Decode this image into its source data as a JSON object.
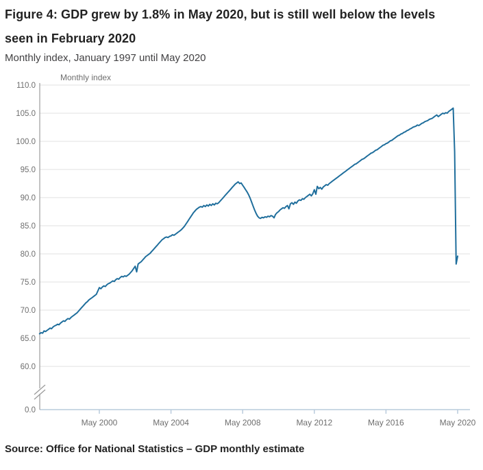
{
  "header": {
    "title": "Figure 4: GDP grew by 1.8% in May 2020, but is still well below the levels seen in February 2020",
    "subtitle": "Monthly index, January 1997 until May 2020"
  },
  "footer": {
    "source": "Source: Office for National Statistics – GDP monthly estimate"
  },
  "chart_data": {
    "type": "line",
    "title": "Figure 4: GDP grew by 1.8% in May 2020, but is still well below the levels seen in February 2020",
    "subtitle": "Monthly index, January 1997 until May 2020",
    "axis_unit_label": "Monthly index",
    "x_start": "1997-01",
    "x_end": "2020-05",
    "x_frequency": "monthly",
    "x_tick_labels": [
      "May 2000",
      "May 2004",
      "May 2008",
      "May 2012",
      "May 2016",
      "May 2020"
    ],
    "x_tick_month_index": [
      40,
      88,
      136,
      184,
      232,
      280
    ],
    "y_ticks": [
      110,
      105,
      100,
      95,
      90,
      85,
      80,
      75,
      70,
      65,
      60
    ],
    "y_tick_labels": [
      "110.0",
      "105.0",
      "100.0",
      "95.0",
      "90.0",
      "85.0",
      "80.0",
      "75.0",
      "70.0",
      "65.0",
      "60.0"
    ],
    "y_axis_zero_label": "0.0",
    "y_axis_break": true,
    "ylim_top_segment": [
      60,
      110
    ],
    "grid": "horizontal-only",
    "legend": "none",
    "colors": {
      "line": "#1f6e9c",
      "grid": "#e2e2e2",
      "y_axis": "#9b9b9b",
      "x_axis": "#b9cbdc",
      "tick_text": "#6e6e6e",
      "title_text": "#222222",
      "subtitle_text": "#414042"
    },
    "series": [
      {
        "name": "GDP monthly index",
        "values": [
          65.8,
          66.0,
          65.9,
          66.3,
          66.2,
          66.4,
          66.6,
          66.8,
          66.7,
          67.0,
          67.2,
          67.3,
          67.5,
          67.4,
          67.7,
          67.9,
          68.1,
          68.0,
          68.3,
          68.5,
          68.4,
          68.7,
          68.9,
          69.1,
          69.3,
          69.5,
          69.8,
          70.1,
          70.4,
          70.7,
          71.0,
          71.3,
          71.5,
          71.8,
          72.0,
          72.2,
          72.4,
          72.6,
          72.8,
          73.4,
          74.0,
          73.8,
          74.1,
          74.3,
          74.2,
          74.5,
          74.7,
          74.8,
          75.0,
          75.2,
          75.1,
          75.4,
          75.6,
          75.5,
          75.8,
          76.0,
          75.9,
          76.1,
          76.0,
          76.2,
          76.4,
          76.7,
          77.0,
          77.4,
          77.8,
          76.8,
          78.2,
          78.4,
          78.6,
          78.9,
          79.2,
          79.5,
          79.7,
          79.9,
          80.1,
          80.4,
          80.7,
          81.0,
          81.3,
          81.6,
          81.9,
          82.2,
          82.5,
          82.7,
          82.9,
          83.0,
          82.9,
          83.1,
          83.2,
          83.4,
          83.3,
          83.5,
          83.7,
          83.9,
          84.1,
          84.3,
          84.6,
          84.9,
          85.3,
          85.7,
          86.1,
          86.5,
          86.9,
          87.3,
          87.6,
          87.9,
          88.1,
          88.3,
          88.4,
          88.3,
          88.6,
          88.4,
          88.7,
          88.5,
          88.8,
          88.6,
          88.9,
          88.7,
          89.0,
          88.9,
          89.1,
          89.4,
          89.7,
          90.0,
          90.3,
          90.6,
          90.9,
          91.2,
          91.5,
          91.8,
          92.1,
          92.4,
          92.6,
          92.8,
          92.5,
          92.6,
          92.2,
          91.8,
          91.4,
          91.0,
          90.5,
          89.9,
          89.2,
          88.5,
          87.8,
          87.2,
          86.7,
          86.4,
          86.3,
          86.5,
          86.4,
          86.6,
          86.5,
          86.7,
          86.6,
          86.8,
          86.7,
          86.4,
          87.0,
          87.3,
          87.5,
          87.8,
          88.0,
          88.2,
          88.1,
          88.4,
          88.6,
          88.0,
          88.9,
          89.1,
          88.8,
          89.2,
          89.0,
          89.4,
          89.6,
          89.5,
          89.8,
          89.7,
          90.0,
          90.2,
          90.4,
          90.6,
          90.3,
          90.7,
          91.4,
          90.6,
          92.0,
          91.6,
          91.8,
          91.5,
          91.9,
          92.1,
          92.3,
          92.2,
          92.5,
          92.7,
          92.9,
          93.1,
          93.3,
          93.5,
          93.7,
          93.9,
          94.1,
          94.3,
          94.5,
          94.7,
          94.9,
          95.1,
          95.3,
          95.5,
          95.7,
          95.9,
          96.0,
          96.2,
          96.4,
          96.6,
          96.8,
          96.9,
          97.1,
          97.3,
          97.5,
          97.7,
          97.9,
          98.0,
          98.2,
          98.4,
          98.5,
          98.7,
          98.9,
          99.1,
          99.3,
          99.4,
          99.6,
          99.7,
          99.9,
          100.1,
          100.2,
          100.4,
          100.6,
          100.8,
          101.0,
          101.1,
          101.3,
          101.4,
          101.6,
          101.7,
          101.9,
          102.0,
          102.2,
          102.3,
          102.5,
          102.6,
          102.7,
          102.9,
          102.8,
          103.0,
          103.2,
          103.3,
          103.5,
          103.6,
          103.7,
          103.9,
          104.0,
          104.1,
          104.3,
          104.5,
          104.7,
          104.4,
          104.6,
          104.8,
          105.0,
          104.9,
          105.1,
          105.0,
          105.3,
          105.5,
          105.7,
          105.9,
          98.2,
          78.2,
          79.6
        ]
      }
    ],
    "annotations": {
      "last_value": 79.6,
      "previous_value": 78.2,
      "growth_in_may_2020_pct": 1.8,
      "february_2020_value": 105.9
    }
  }
}
